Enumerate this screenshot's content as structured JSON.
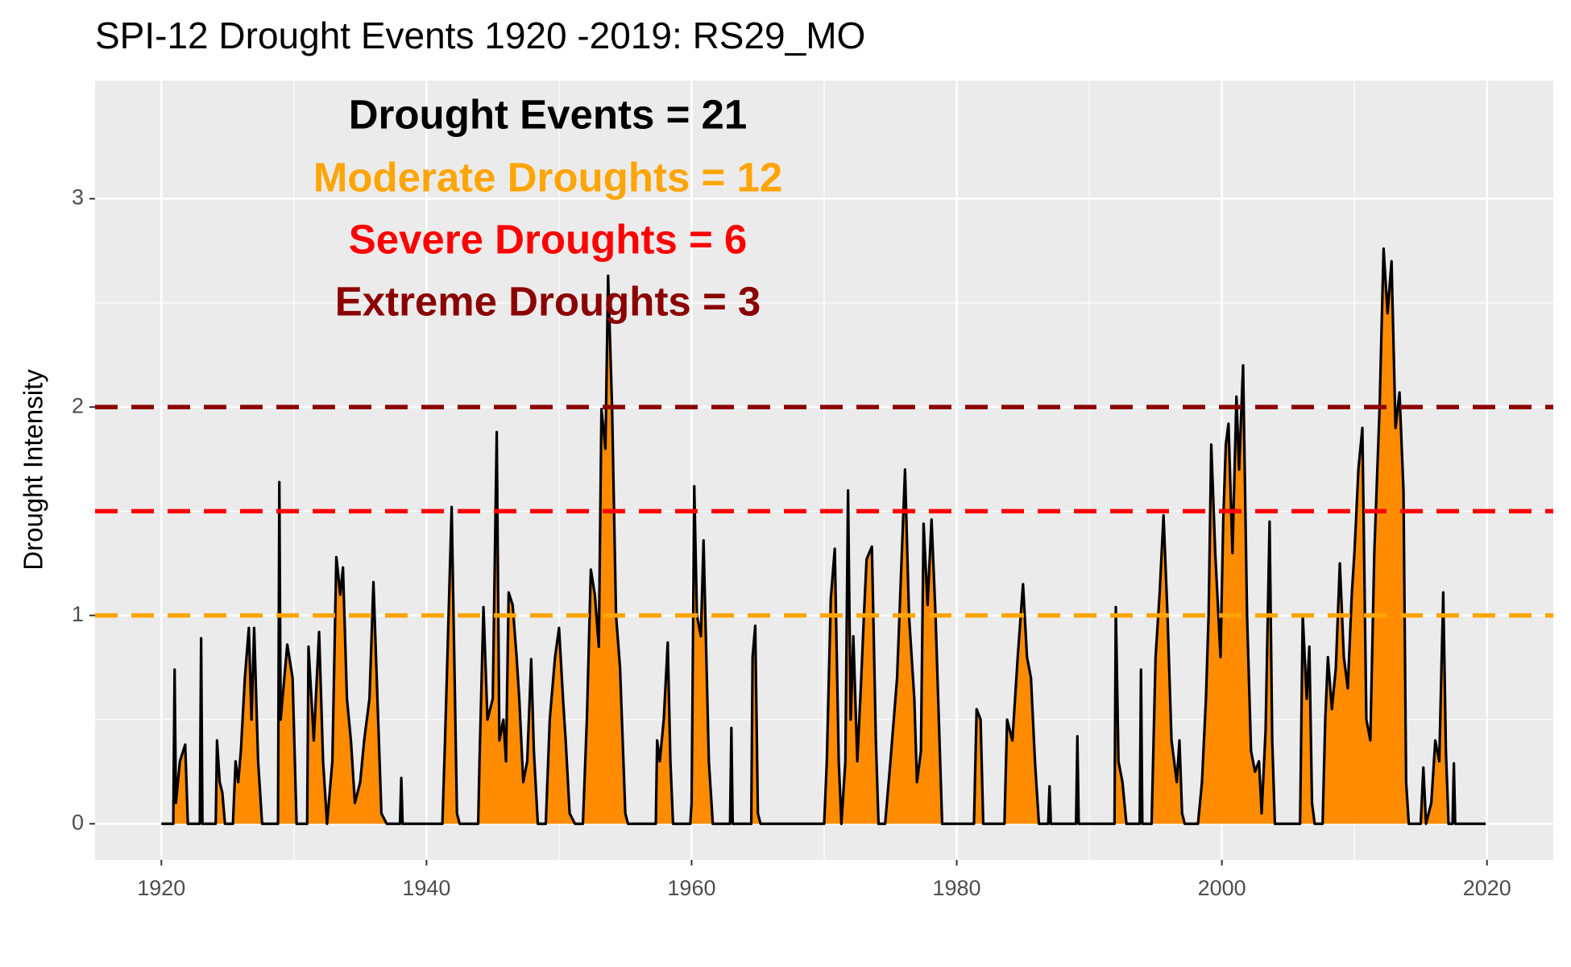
{
  "chart_data": {
    "type": "area",
    "title": "SPI-12 Drought Events 1920 -2019: RS29_MO",
    "y_label": "Drought Intensity",
    "annotations": [
      {
        "text": "Drought Events = 21",
        "color": "#000000"
      },
      {
        "text": "Moderate Droughts = 12",
        "color": "#FFA500"
      },
      {
        "text": "Severe Droughts = 6",
        "color": "#FF0000"
      },
      {
        "text": "Extreme Droughts = 3",
        "color": "#8B0000"
      }
    ],
    "hlines": [
      {
        "value": 1,
        "color": "#FFA500"
      },
      {
        "value": 1.5,
        "color": "#FF0000"
      },
      {
        "value": 2,
        "color": "#8B0000"
      }
    ],
    "fill_color": "#FF8C00",
    "line_color": "#000000",
    "xlim": [
      1915,
      2025
    ],
    "ylim": [
      -0.173,
      3.567
    ],
    "xticks": [
      1920,
      1940,
      1960,
      1980,
      2000,
      2020
    ],
    "yticks": [
      0,
      1,
      2,
      3
    ],
    "xminor": [
      1930,
      1950,
      1970,
      1990,
      2010
    ],
    "yminor": [
      0.5,
      1.5,
      2.5
    ],
    "grid": true,
    "x": [
      1920.0,
      1920.9,
      1921.0,
      1921.1,
      1921.4,
      1921.8,
      1922.0,
      1922.9,
      1923.0,
      1923.1,
      1924.1,
      1924.2,
      1924.4,
      1924.6,
      1924.8,
      1925.4,
      1925.6,
      1925.8,
      1926.0,
      1926.3,
      1926.6,
      1926.8,
      1927.0,
      1927.3,
      1927.6,
      1928.8,
      1928.9,
      1929.0,
      1929.5,
      1929.9,
      1930.2,
      1931.0,
      1931.1,
      1931.5,
      1931.9,
      1932.2,
      1932.5,
      1932.9,
      1933.2,
      1933.5,
      1933.7,
      1934.0,
      1934.3,
      1934.6,
      1935.0,
      1935.3,
      1935.7,
      1936.0,
      1936.3,
      1936.6,
      1937.0,
      1938.0,
      1938.1,
      1938.2,
      1941.2,
      1941.4,
      1941.9,
      1942.3,
      1942.5,
      1943.9,
      1944.0,
      1944.3,
      1944.6,
      1945.0,
      1945.3,
      1945.5,
      1945.8,
      1946.0,
      1946.2,
      1946.5,
      1946.8,
      1947.0,
      1947.3,
      1947.6,
      1947.9,
      1948.1,
      1948.4,
      1949.0,
      1949.3,
      1949.7,
      1950.0,
      1950.3,
      1950.5,
      1950.8,
      1951.2,
      1951.8,
      1952.1,
      1952.4,
      1952.7,
      1953.0,
      1953.2,
      1953.5,
      1953.7,
      1954.0,
      1954.3,
      1954.6,
      1955.0,
      1955.2,
      1957.3,
      1957.4,
      1957.6,
      1957.9,
      1958.2,
      1958.4,
      1958.6,
      1959.9,
      1960.0,
      1960.2,
      1960.4,
      1960.7,
      1960.9,
      1961.3,
      1961.6,
      1962.9,
      1963.0,
      1963.1,
      1964.5,
      1964.6,
      1964.8,
      1965.0,
      1965.2,
      1970.0,
      1970.2,
      1970.5,
      1970.8,
      1971.1,
      1971.3,
      1971.6,
      1971.8,
      1972.0,
      1972.2,
      1972.5,
      1972.8,
      1973.0,
      1973.2,
      1973.6,
      1973.9,
      1974.1,
      1974.6,
      1975.0,
      1975.5,
      1975.8,
      1976.1,
      1976.4,
      1976.8,
      1977.0,
      1977.3,
      1977.5,
      1977.8,
      1978.1,
      1978.4,
      1978.7,
      1978.9,
      1981.3,
      1981.5,
      1981.8,
      1982.0,
      1983.6,
      1983.8,
      1984.2,
      1984.6,
      1985.0,
      1985.3,
      1985.6,
      1985.9,
      1986.2,
      1986.9,
      1987.0,
      1987.1,
      1989.0,
      1989.1,
      1989.2,
      1991.9,
      1992.0,
      1992.2,
      1992.5,
      1992.8,
      1993.8,
      1993.9,
      1994.0,
      1994.7,
      1995.0,
      1995.3,
      1995.6,
      1995.9,
      1996.2,
      1996.6,
      1996.8,
      1997.0,
      1997.2,
      1998.2,
      1998.5,
      1998.8,
      1999.0,
      1999.2,
      1999.5,
      1999.9,
      2000.1,
      2000.3,
      2000.5,
      2000.8,
      2001.1,
      2001.3,
      2001.6,
      2001.9,
      2002.2,
      2002.5,
      2002.8,
      2003.0,
      2003.3,
      2003.6,
      2003.8,
      2004.0,
      2005.9,
      2006.1,
      2006.4,
      2006.6,
      2006.8,
      2007.0,
      2007.6,
      2007.8,
      2008.0,
      2008.3,
      2008.6,
      2008.9,
      2009.2,
      2009.5,
      2009.8,
      2010.0,
      2010.3,
      2010.6,
      2010.9,
      2011.2,
      2011.5,
      2011.9,
      2012.2,
      2012.5,
      2012.8,
      2013.1,
      2013.4,
      2013.7,
      2013.9,
      2014.1,
      2015.0,
      2015.2,
      2015.4,
      2015.8,
      2016.1,
      2016.4,
      2016.7,
      2016.9,
      2017.1,
      2017.4,
      2017.5,
      2017.6,
      2019.9
    ],
    "values": [
      0,
      0,
      0.74,
      0.1,
      0.3,
      0.38,
      0,
      0,
      0.89,
      0,
      0,
      0.4,
      0.2,
      0.15,
      0,
      0,
      0.3,
      0.2,
      0.35,
      0.7,
      0.94,
      0.5,
      0.94,
      0.3,
      0,
      0,
      1.64,
      0.5,
      0.86,
      0.7,
      0,
      0,
      0.85,
      0.4,
      0.92,
      0.3,
      0,
      0.3,
      1.28,
      1.1,
      1.23,
      0.6,
      0.4,
      0.1,
      0.2,
      0.4,
      0.6,
      1.16,
      0.6,
      0.05,
      0,
      0,
      0.22,
      0,
      0,
      0.4,
      1.52,
      0.05,
      0,
      0,
      0.3,
      1.04,
      0.5,
      0.6,
      1.88,
      0.4,
      0.5,
      0.3,
      1.11,
      1.05,
      0.8,
      0.6,
      0.2,
      0.3,
      0.79,
      0.35,
      0,
      0,
      0.5,
      0.8,
      0.94,
      0.6,
      0.4,
      0.05,
      0,
      0,
      0.5,
      1.22,
      1.1,
      0.85,
      1.99,
      1.8,
      2.63,
      2.0,
      1.0,
      0.75,
      0.05,
      0,
      0,
      0.4,
      0.3,
      0.5,
      0.87,
      0.3,
      0,
      0,
      0.1,
      1.62,
      1.0,
      0.9,
      1.36,
      0.3,
      0,
      0,
      0.46,
      0,
      0,
      0.8,
      0.95,
      0.05,
      0,
      0,
      0.3,
      1.08,
      1.32,
      0.3,
      0,
      0.3,
      1.6,
      0.5,
      0.9,
      0.3,
      0.7,
      1.0,
      1.27,
      1.33,
      0.4,
      0,
      0,
      0.3,
      0.7,
      1.2,
      1.7,
      1.0,
      0.6,
      0.2,
      0.35,
      1.44,
      1.05,
      1.46,
      1.0,
      0.4,
      0,
      0,
      0.55,
      0.5,
      0,
      0,
      0.5,
      0.4,
      0.8,
      1.15,
      0.8,
      0.7,
      0.3,
      0,
      0,
      0.18,
      0,
      0,
      0.42,
      0,
      0,
      1.04,
      0.3,
      0.2,
      0,
      0,
      0.74,
      0,
      0,
      0.8,
      1.1,
      1.48,
      1.0,
      0.4,
      0.2,
      0.4,
      0.05,
      0,
      0,
      0.2,
      0.6,
      1.0,
      1.82,
      1.3,
      0.8,
      1.45,
      1.82,
      1.92,
      1.3,
      2.05,
      1.7,
      2.2,
      1.0,
      0.35,
      0.25,
      0.3,
      0.05,
      0.45,
      1.45,
      0.4,
      0,
      0,
      1.0,
      0.6,
      0.85,
      0.1,
      0,
      0,
      0.5,
      0.8,
      0.55,
      0.75,
      1.25,
      0.8,
      0.65,
      1.1,
      1.3,
      1.7,
      1.9,
      0.5,
      0.4,
      1.3,
      2.0,
      2.76,
      2.45,
      2.7,
      1.9,
      2.07,
      1.6,
      0.2,
      0,
      0,
      0.27,
      0,
      0.1,
      0.4,
      0.3,
      1.11,
      0.35,
      0,
      0,
      0.29,
      0,
      0
    ]
  }
}
